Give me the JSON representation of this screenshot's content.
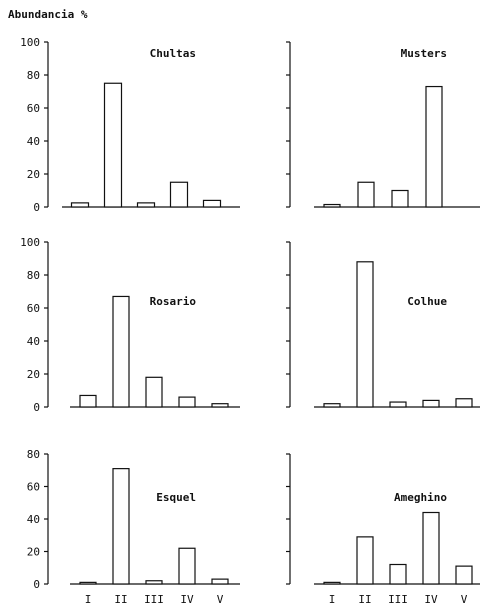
{
  "figure": {
    "ylabel": "Abundancia %"
  },
  "chart_data": [
    {
      "type": "bar",
      "title": "Chultas",
      "categories": [
        "I",
        "II",
        "III",
        "IV",
        "V"
      ],
      "values": [
        2.5,
        75,
        2.5,
        15,
        4
      ],
      "ylim": [
        0,
        100
      ],
      "yticks": [
        0,
        20,
        40,
        60,
        80,
        100
      ],
      "show_yticks": true,
      "show_xticks": false
    },
    {
      "type": "bar",
      "title": "Musters",
      "categories": [
        "I",
        "II",
        "III",
        "IV",
        "V"
      ],
      "values": [
        1.5,
        15,
        10,
        73,
        0
      ],
      "ylim": [
        0,
        100
      ],
      "yticks": [
        0,
        20,
        40,
        60,
        80,
        100
      ],
      "show_yticks": false,
      "show_xticks": false
    },
    {
      "type": "bar",
      "title": "Rosario",
      "categories": [
        "I",
        "II",
        "III",
        "IV",
        "V"
      ],
      "values": [
        7,
        67,
        18,
        6,
        2
      ],
      "ylim": [
        0,
        100
      ],
      "yticks": [
        0,
        20,
        40,
        60,
        80,
        100
      ],
      "show_yticks": true,
      "show_xticks": false
    },
    {
      "type": "bar",
      "title": "Colhue",
      "categories": [
        "I",
        "II",
        "III",
        "IV",
        "V"
      ],
      "values": [
        2,
        88,
        3,
        4,
        5
      ],
      "ylim": [
        0,
        100
      ],
      "yticks": [
        0,
        20,
        40,
        60,
        80,
        100
      ],
      "show_yticks": false,
      "show_xticks": false
    },
    {
      "type": "bar",
      "title": "Esquel",
      "categories": [
        "I",
        "II",
        "III",
        "IV",
        "V"
      ],
      "values": [
        1,
        71,
        2,
        22,
        3
      ],
      "ylim": [
        0,
        80
      ],
      "yticks": [
        0,
        20,
        40,
        60,
        80
      ],
      "show_yticks": true,
      "show_xticks": true
    },
    {
      "type": "bar",
      "title": "Ameghino",
      "categories": [
        "I",
        "II",
        "III",
        "IV",
        "V"
      ],
      "values": [
        1,
        29,
        12,
        44,
        11
      ],
      "ylim": [
        0,
        80
      ],
      "yticks": [
        0,
        20,
        40,
        60,
        80
      ],
      "show_yticks": false,
      "show_xticks": true
    }
  ]
}
